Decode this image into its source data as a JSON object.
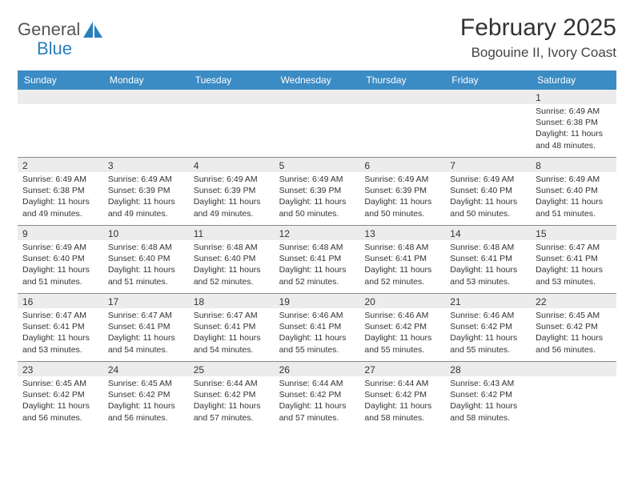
{
  "logo": {
    "word1": "General",
    "word2": "Blue",
    "icon_color": "#2a7fbf"
  },
  "title": "February 2025",
  "location": "Bogouine II, Ivory Coast",
  "colors": {
    "header_bg": "#3b8bc4",
    "header_text": "#ffffff",
    "daynum_bg": "#ececec",
    "border": "#888888",
    "text": "#333333"
  },
  "day_headers": [
    "Sunday",
    "Monday",
    "Tuesday",
    "Wednesday",
    "Thursday",
    "Friday",
    "Saturday"
  ],
  "labels": {
    "sunrise": "Sunrise:",
    "sunset": "Sunset:",
    "daylight": "Daylight:"
  },
  "weeks": [
    [
      {
        "n": "",
        "sr": "",
        "ss": "",
        "dl": ""
      },
      {
        "n": "",
        "sr": "",
        "ss": "",
        "dl": ""
      },
      {
        "n": "",
        "sr": "",
        "ss": "",
        "dl": ""
      },
      {
        "n": "",
        "sr": "",
        "ss": "",
        "dl": ""
      },
      {
        "n": "",
        "sr": "",
        "ss": "",
        "dl": ""
      },
      {
        "n": "",
        "sr": "",
        "ss": "",
        "dl": ""
      },
      {
        "n": "1",
        "sr": "6:49 AM",
        "ss": "6:38 PM",
        "dl": "11 hours and 48 minutes."
      }
    ],
    [
      {
        "n": "2",
        "sr": "6:49 AM",
        "ss": "6:38 PM",
        "dl": "11 hours and 49 minutes."
      },
      {
        "n": "3",
        "sr": "6:49 AM",
        "ss": "6:39 PM",
        "dl": "11 hours and 49 minutes."
      },
      {
        "n": "4",
        "sr": "6:49 AM",
        "ss": "6:39 PM",
        "dl": "11 hours and 49 minutes."
      },
      {
        "n": "5",
        "sr": "6:49 AM",
        "ss": "6:39 PM",
        "dl": "11 hours and 50 minutes."
      },
      {
        "n": "6",
        "sr": "6:49 AM",
        "ss": "6:39 PM",
        "dl": "11 hours and 50 minutes."
      },
      {
        "n": "7",
        "sr": "6:49 AM",
        "ss": "6:40 PM",
        "dl": "11 hours and 50 minutes."
      },
      {
        "n": "8",
        "sr": "6:49 AM",
        "ss": "6:40 PM",
        "dl": "11 hours and 51 minutes."
      }
    ],
    [
      {
        "n": "9",
        "sr": "6:49 AM",
        "ss": "6:40 PM",
        "dl": "11 hours and 51 minutes."
      },
      {
        "n": "10",
        "sr": "6:48 AM",
        "ss": "6:40 PM",
        "dl": "11 hours and 51 minutes."
      },
      {
        "n": "11",
        "sr": "6:48 AM",
        "ss": "6:40 PM",
        "dl": "11 hours and 52 minutes."
      },
      {
        "n": "12",
        "sr": "6:48 AM",
        "ss": "6:41 PM",
        "dl": "11 hours and 52 minutes."
      },
      {
        "n": "13",
        "sr": "6:48 AM",
        "ss": "6:41 PM",
        "dl": "11 hours and 52 minutes."
      },
      {
        "n": "14",
        "sr": "6:48 AM",
        "ss": "6:41 PM",
        "dl": "11 hours and 53 minutes."
      },
      {
        "n": "15",
        "sr": "6:47 AM",
        "ss": "6:41 PM",
        "dl": "11 hours and 53 minutes."
      }
    ],
    [
      {
        "n": "16",
        "sr": "6:47 AM",
        "ss": "6:41 PM",
        "dl": "11 hours and 53 minutes."
      },
      {
        "n": "17",
        "sr": "6:47 AM",
        "ss": "6:41 PM",
        "dl": "11 hours and 54 minutes."
      },
      {
        "n": "18",
        "sr": "6:47 AM",
        "ss": "6:41 PM",
        "dl": "11 hours and 54 minutes."
      },
      {
        "n": "19",
        "sr": "6:46 AM",
        "ss": "6:41 PM",
        "dl": "11 hours and 55 minutes."
      },
      {
        "n": "20",
        "sr": "6:46 AM",
        "ss": "6:42 PM",
        "dl": "11 hours and 55 minutes."
      },
      {
        "n": "21",
        "sr": "6:46 AM",
        "ss": "6:42 PM",
        "dl": "11 hours and 55 minutes."
      },
      {
        "n": "22",
        "sr": "6:45 AM",
        "ss": "6:42 PM",
        "dl": "11 hours and 56 minutes."
      }
    ],
    [
      {
        "n": "23",
        "sr": "6:45 AM",
        "ss": "6:42 PM",
        "dl": "11 hours and 56 minutes."
      },
      {
        "n": "24",
        "sr": "6:45 AM",
        "ss": "6:42 PM",
        "dl": "11 hours and 56 minutes."
      },
      {
        "n": "25",
        "sr": "6:44 AM",
        "ss": "6:42 PM",
        "dl": "11 hours and 57 minutes."
      },
      {
        "n": "26",
        "sr": "6:44 AM",
        "ss": "6:42 PM",
        "dl": "11 hours and 57 minutes."
      },
      {
        "n": "27",
        "sr": "6:44 AM",
        "ss": "6:42 PM",
        "dl": "11 hours and 58 minutes."
      },
      {
        "n": "28",
        "sr": "6:43 AM",
        "ss": "6:42 PM",
        "dl": "11 hours and 58 minutes."
      },
      {
        "n": "",
        "sr": "",
        "ss": "",
        "dl": ""
      }
    ]
  ]
}
